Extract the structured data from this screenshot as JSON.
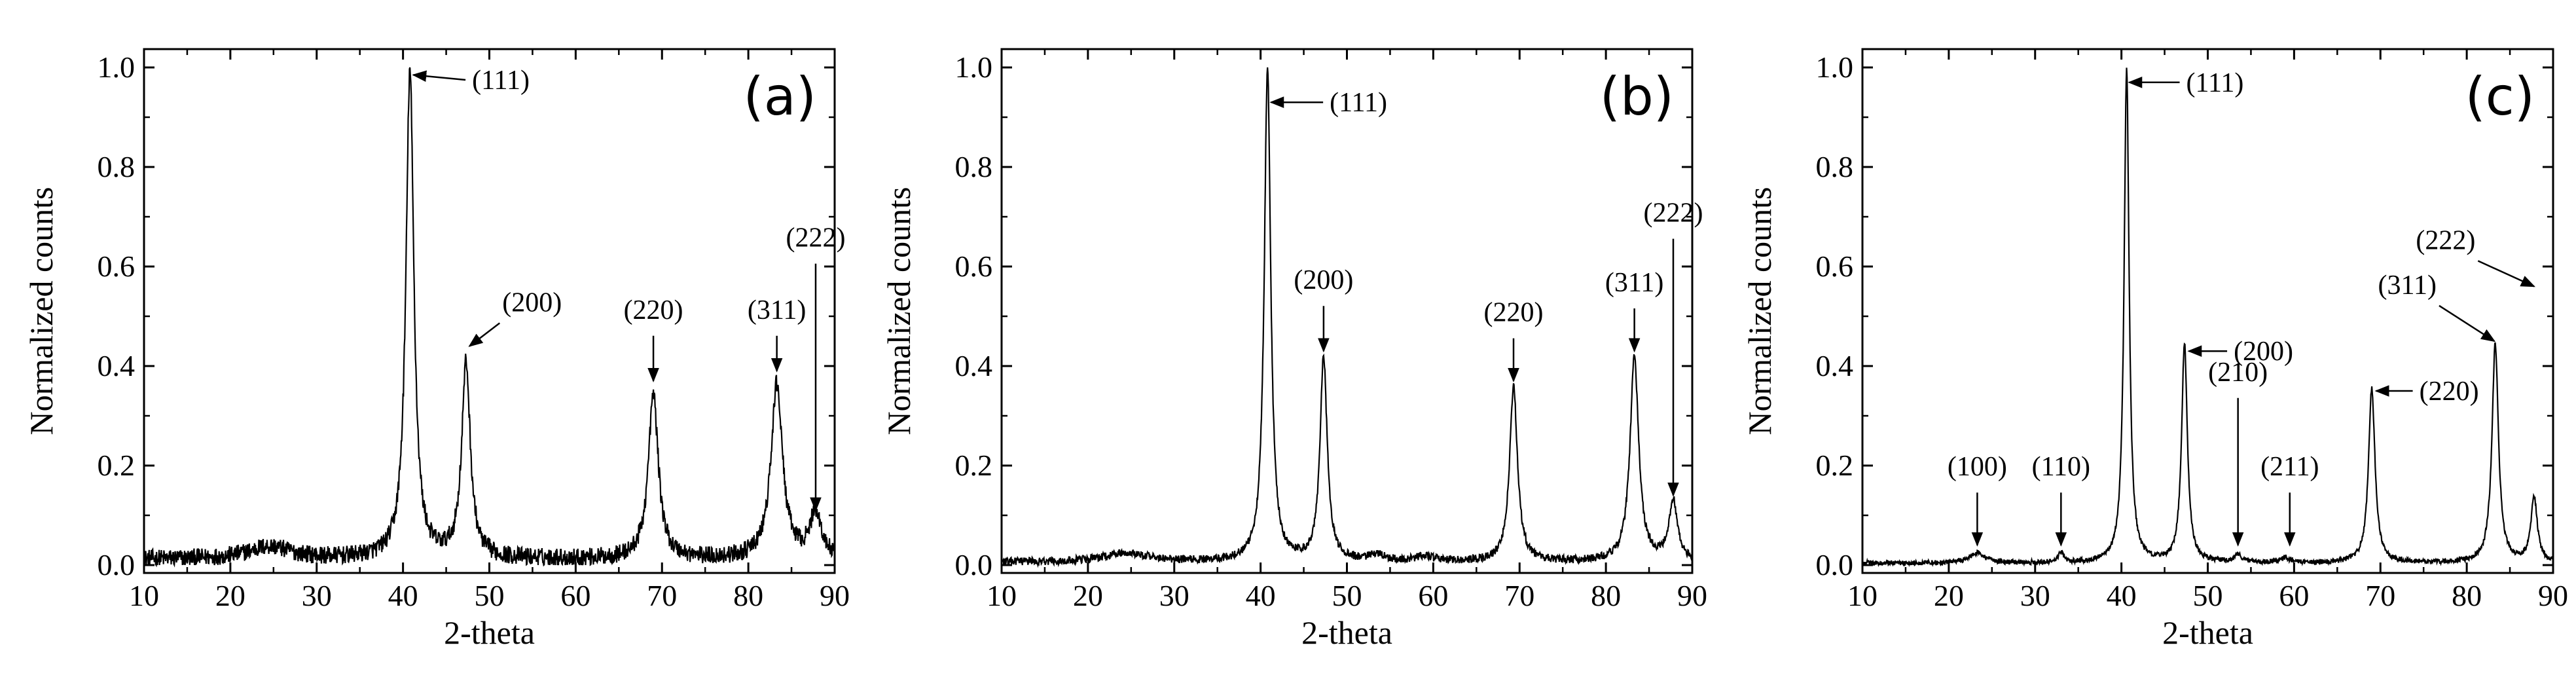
{
  "chart_data": [
    {
      "type": "line",
      "panel_label": "(a)",
      "xlabel": "2-theta",
      "ylabel": "Normalized counts",
      "xlim": [
        10,
        90
      ],
      "ylim": [
        0,
        1.0
      ],
      "xticks": [
        "10",
        "20",
        "30",
        "40",
        "50",
        "60",
        "70",
        "80",
        "90"
      ],
      "yticks": [
        "0.0",
        "0.2",
        "0.4",
        "0.6",
        "0.8",
        "1.0"
      ],
      "grid": false,
      "noise": 0.018,
      "baseline": 0.012,
      "series": [
        {
          "peaks": [
            {
              "x": 24.5,
              "h": 0.025,
              "w": 3.0
            },
            {
              "x": 40.8,
              "h": 0.98,
              "w": 0.55
            },
            {
              "x": 47.3,
              "h": 0.39,
              "w": 0.6
            },
            {
              "x": 69.0,
              "h": 0.33,
              "w": 0.7
            },
            {
              "x": 83.3,
              "h": 0.35,
              "w": 0.8
            },
            {
              "x": 87.8,
              "h": 0.09,
              "w": 0.8
            }
          ]
        }
      ],
      "annotations": [
        {
          "text": "(111)",
          "x": 41.2,
          "y": 0.985,
          "text_x": 48.0,
          "text_y": 0.975,
          "arrow": "left"
        },
        {
          "text": "(200)",
          "x": 47.7,
          "y": 0.44,
          "text_x": 51.5,
          "text_y": 0.51,
          "arrow": "diag"
        },
        {
          "text": "(220)",
          "x": 69.0,
          "y": 0.37,
          "text_x": 69.0,
          "text_y": 0.495,
          "arrow": "down"
        },
        {
          "text": "(311)",
          "x": 83.3,
          "y": 0.39,
          "text_x": 83.3,
          "text_y": 0.495,
          "arrow": "down"
        },
        {
          "text": "(222)",
          "x": 87.8,
          "y": 0.11,
          "text_x": 87.8,
          "text_y": 0.64,
          "arrow": "down"
        }
      ]
    },
    {
      "type": "line",
      "panel_label": "(b)",
      "xlabel": "2-theta",
      "ylabel": "Normalized counts",
      "xlim": [
        10,
        90
      ],
      "ylim": [
        0,
        1.0
      ],
      "xticks": [
        "10",
        "20",
        "30",
        "40",
        "50",
        "60",
        "70",
        "80",
        "90"
      ],
      "yticks": [
        "0.0",
        "0.2",
        "0.4",
        "0.6",
        "0.8",
        "1.0"
      ],
      "grid": false,
      "noise": 0.008,
      "baseline": 0.006,
      "series": [
        {
          "peaks": [
            {
              "x": 24.5,
              "h": 0.018,
              "w": 3.0
            },
            {
              "x": 40.8,
              "h": 0.99,
              "w": 0.45
            },
            {
              "x": 47.3,
              "h": 0.41,
              "w": 0.5
            },
            {
              "x": 53.5,
              "h": 0.012,
              "w": 1.2
            },
            {
              "x": 59.0,
              "h": 0.01,
              "w": 1.2
            },
            {
              "x": 69.3,
              "h": 0.35,
              "w": 0.55
            },
            {
              "x": 83.3,
              "h": 0.41,
              "w": 0.6
            },
            {
              "x": 87.8,
              "h": 0.12,
              "w": 0.6
            }
          ]
        }
      ],
      "annotations": [
        {
          "text": "(111)",
          "x": 41.2,
          "y": 0.93,
          "text_x": 48.0,
          "text_y": 0.93,
          "arrow": "left"
        },
        {
          "text": "(200)",
          "x": 47.3,
          "y": 0.43,
          "text_x": 47.3,
          "text_y": 0.555,
          "arrow": "down"
        },
        {
          "text": "(220)",
          "x": 69.3,
          "y": 0.37,
          "text_x": 69.3,
          "text_y": 0.49,
          "arrow": "down"
        },
        {
          "text": "(311)",
          "x": 83.3,
          "y": 0.43,
          "text_x": 83.3,
          "text_y": 0.55,
          "arrow": "down"
        },
        {
          "text": "(222)",
          "x": 87.8,
          "y": 0.14,
          "text_x": 87.8,
          "text_y": 0.69,
          "arrow": "down"
        }
      ]
    },
    {
      "type": "line",
      "panel_label": "(c)",
      "xlabel": "2-theta",
      "ylabel": "Normalized counts",
      "xlim": [
        10,
        90
      ],
      "ylim": [
        0,
        1.0
      ],
      "xticks": [
        "10",
        "20",
        "30",
        "40",
        "50",
        "60",
        "70",
        "80",
        "90"
      ],
      "yticks": [
        "0.0",
        "0.2",
        "0.4",
        "0.6",
        "0.8",
        "1.0"
      ],
      "grid": false,
      "noise": 0.005,
      "baseline": 0.004,
      "series": [
        {
          "peaks": [
            {
              "x": 23.3,
              "h": 0.02,
              "w": 1.0
            },
            {
              "x": 33.0,
              "h": 0.02,
              "w": 0.4
            },
            {
              "x": 40.6,
              "h": 0.99,
              "w": 0.35
            },
            {
              "x": 47.3,
              "h": 0.44,
              "w": 0.4
            },
            {
              "x": 53.5,
              "h": 0.015,
              "w": 0.6
            },
            {
              "x": 59.0,
              "h": 0.01,
              "w": 0.6
            },
            {
              "x": 69.0,
              "h": 0.35,
              "w": 0.45
            },
            {
              "x": 83.3,
              "h": 0.44,
              "w": 0.45
            },
            {
              "x": 87.8,
              "h": 0.13,
              "w": 0.45
            }
          ]
        }
      ],
      "annotations": [
        {
          "text": "(100)",
          "x": 23.3,
          "y": 0.04,
          "text_x": 23.3,
          "text_y": 0.18,
          "arrow": "down"
        },
        {
          "text": "(110)",
          "x": 33.0,
          "y": 0.04,
          "text_x": 33.0,
          "text_y": 0.18,
          "arrow": "down"
        },
        {
          "text": "(111)",
          "x": 40.9,
          "y": 0.97,
          "text_x": 47.5,
          "text_y": 0.97,
          "arrow": "left"
        },
        {
          "text": "(200)",
          "x": 47.8,
          "y": 0.43,
          "text_x": 53.0,
          "text_y": 0.43,
          "arrow": "left"
        },
        {
          "text": "(210)",
          "x": 53.5,
          "y": 0.04,
          "text_x": 53.5,
          "text_y": 0.37,
          "arrow": "down"
        },
        {
          "text": "(211)",
          "x": 59.5,
          "y": 0.04,
          "text_x": 59.5,
          "text_y": 0.18,
          "arrow": "down"
        },
        {
          "text": "(220)",
          "x": 69.5,
          "y": 0.35,
          "text_x": 74.5,
          "text_y": 0.35,
          "arrow": "left"
        },
        {
          "text": "(311)",
          "x": 83.2,
          "y": 0.45,
          "text_x": 76.5,
          "text_y": 0.545,
          "arrow": "diag"
        },
        {
          "text": "(222)",
          "x": 87.8,
          "y": 0.56,
          "text_x": 81.0,
          "text_y": 0.635,
          "arrow": "diag"
        }
      ]
    }
  ]
}
